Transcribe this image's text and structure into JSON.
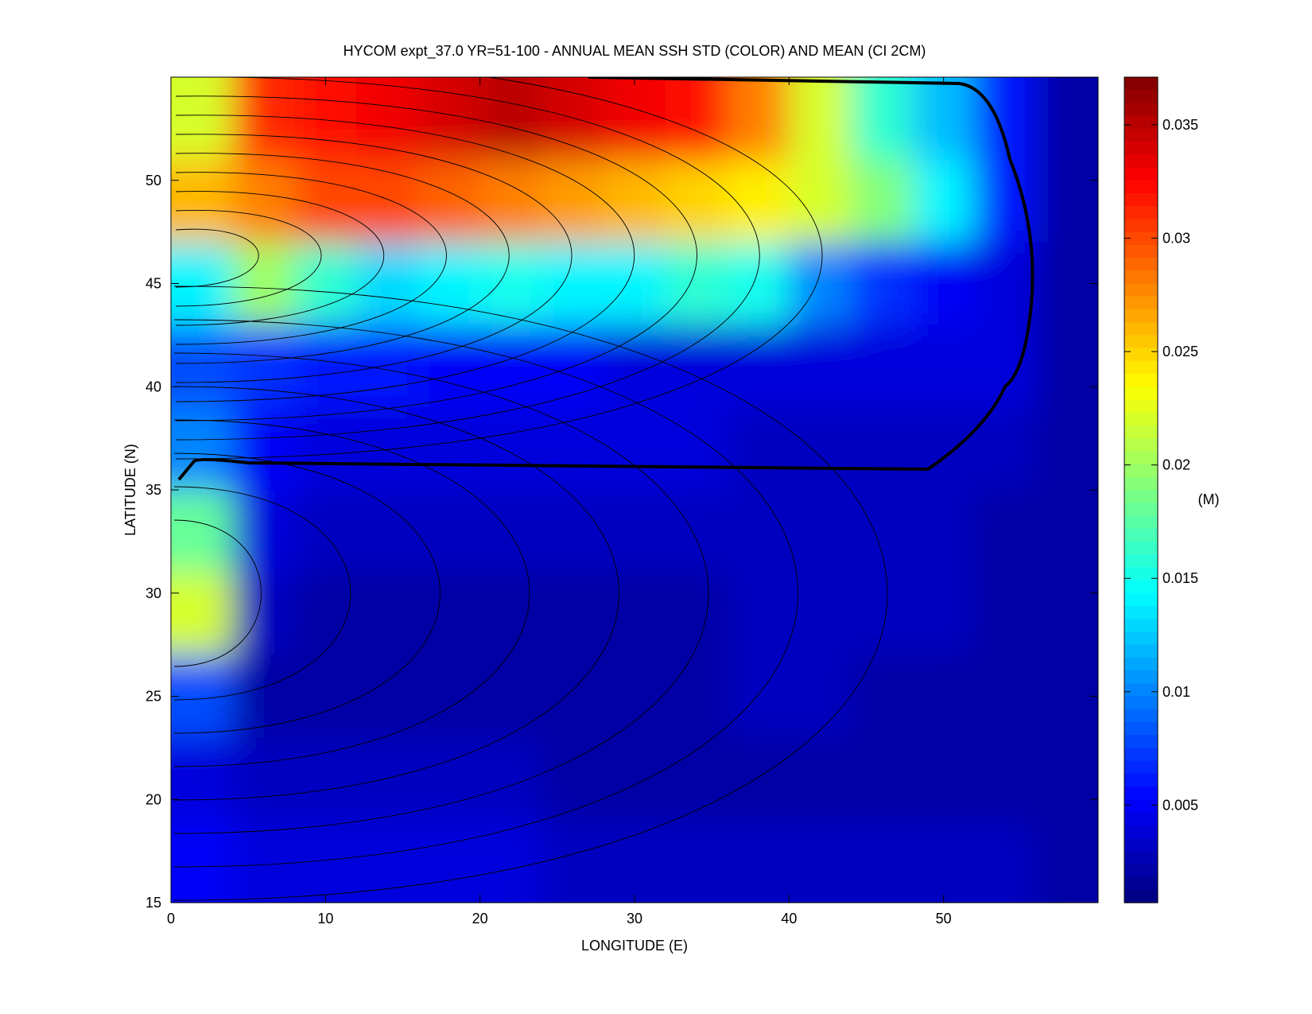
{
  "chart_data": {
    "type": "heatmap",
    "title": "HYCOM expt_37.0 YR=51-100 - ANNUAL MEAN SSH STD (COLOR) AND MEAN (CI 2CM)",
    "x_label": "LONGITUDE (E)",
    "y_label": "LATITUDE (N)",
    "colorbar_label": "(M)",
    "colormap": "jet",
    "x": [
      2,
      6,
      10,
      14,
      18,
      22,
      26,
      30,
      34,
      38,
      42,
      46,
      50,
      54,
      58
    ],
    "y": [
      53,
      49,
      45,
      41,
      37,
      33,
      29,
      25,
      21,
      17
    ],
    "z": [
      [
        0.022,
        0.031,
        0.032,
        0.033,
        0.034,
        0.035,
        0.034,
        0.033,
        0.032,
        0.028,
        0.022,
        0.016,
        0.012,
        0.006,
        0.002
      ],
      [
        0.026,
        0.028,
        0.03,
        0.03,
        0.029,
        0.028,
        0.027,
        0.026,
        0.025,
        0.024,
        0.022,
        0.019,
        0.014,
        0.006,
        0.002
      ],
      [
        0.014,
        0.02,
        0.016,
        0.013,
        0.014,
        0.015,
        0.014,
        0.014,
        0.016,
        0.015,
        0.01,
        0.007,
        0.005,
        0.004,
        0.002
      ],
      [
        0.008,
        0.007,
        0.006,
        0.006,
        0.005,
        0.005,
        0.005,
        0.004,
        0.004,
        0.004,
        0.004,
        0.004,
        0.004,
        0.004,
        0.002
      ],
      [
        0.01,
        0.005,
        0.004,
        0.004,
        0.004,
        0.004,
        0.004,
        0.004,
        0.004,
        0.003,
        0.003,
        0.003,
        0.003,
        0.003,
        0.002
      ],
      [
        0.018,
        0.004,
        0.003,
        0.003,
        0.003,
        0.003,
        0.003,
        0.003,
        0.003,
        0.003,
        0.003,
        0.003,
        0.003,
        0.002,
        0.002
      ],
      [
        0.022,
        0.003,
        0.002,
        0.002,
        0.002,
        0.002,
        0.002,
        0.002,
        0.002,
        0.003,
        0.003,
        0.003,
        0.003,
        0.002,
        0.002
      ],
      [
        0.008,
        0.002,
        0.002,
        0.002,
        0.002,
        0.002,
        0.002,
        0.002,
        0.002,
        0.003,
        0.003,
        0.002,
        0.002,
        0.002,
        0.002
      ],
      [
        0.004,
        0.003,
        0.003,
        0.003,
        0.003,
        0.003,
        0.002,
        0.002,
        0.002,
        0.002,
        0.002,
        0.002,
        0.002,
        0.002,
        0.002
      ],
      [
        0.005,
        0.004,
        0.004,
        0.004,
        0.004,
        0.004,
        0.003,
        0.003,
        0.003,
        0.003,
        0.003,
        0.003,
        0.003,
        0.003,
        0.002
      ]
    ],
    "xlim": [
      0,
      60
    ],
    "xticks": [
      0,
      10,
      20,
      30,
      40,
      50
    ],
    "ylim": [
      15,
      55
    ],
    "yticks": [
      15,
      20,
      25,
      30,
      35,
      40,
      45,
      50
    ],
    "clim": [
      0.0007,
      0.0371
    ],
    "cticks": [
      0.005,
      0.01,
      0.015,
      0.02,
      0.025,
      0.03,
      0.035
    ]
  }
}
